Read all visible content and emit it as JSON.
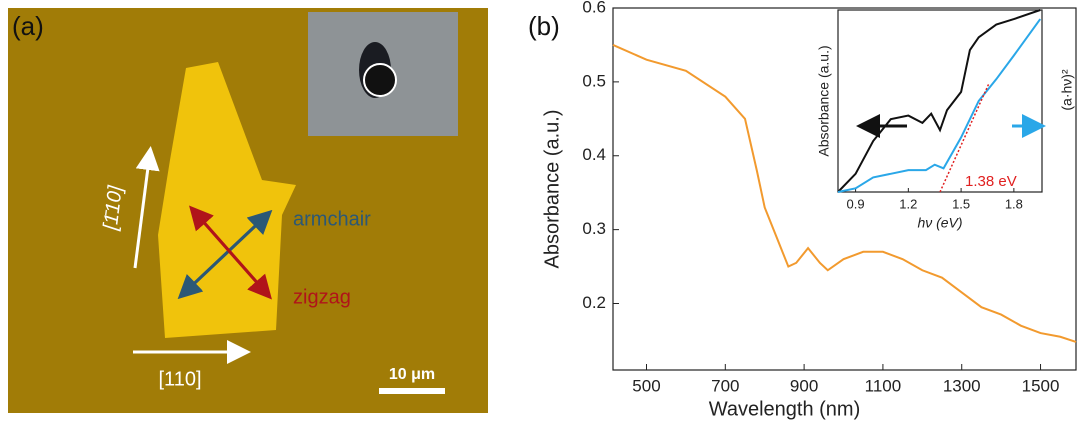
{
  "panel_a": {
    "label": "(a)",
    "direction_x": "[110]",
    "direction_y": "[1̄10]",
    "armchair": "armchair",
    "zigzag": "zigzag",
    "scale_bar": "10 μm"
  },
  "chart_data": [
    {
      "type": "line",
      "label": "(b)",
      "x_label": "Wavelength (nm)",
      "y_label": "Absorbance (a.u.)",
      "xlim": [
        415,
        1590
      ],
      "xticks": [
        500,
        700,
        900,
        1100,
        1300,
        1500
      ],
      "ylim": [
        0.11,
        0.6
      ],
      "yticks": [
        0.2,
        0.3,
        0.4,
        0.5,
        0.6
      ],
      "series": [
        {
          "color": "#f29a2e",
          "x": [
            415,
            500,
            600,
            700,
            750,
            780,
            800,
            830,
            860,
            880,
            910,
            940,
            960,
            1000,
            1050,
            1100,
            1150,
            1200,
            1250,
            1300,
            1350,
            1400,
            1450,
            1500,
            1550,
            1590
          ],
          "values": [
            0.55,
            0.53,
            0.515,
            0.48,
            0.45,
            0.38,
            0.33,
            0.29,
            0.25,
            0.255,
            0.275,
            0.255,
            0.245,
            0.26,
            0.27,
            0.27,
            0.26,
            0.245,
            0.235,
            0.215,
            0.195,
            0.185,
            0.17,
            0.16,
            0.155,
            0.148
          ]
        }
      ]
    },
    {
      "type": "line",
      "x_label": "hν (eV)",
      "y_label": "Absorbance (a.u.)",
      "y2_label": "(a·hν)²",
      "annotation": "1.38 eV",
      "xlim": [
        0.8,
        1.96
      ],
      "xticks": [
        0.9,
        1.2,
        1.5,
        1.8
      ],
      "ylim": [
        0,
        1
      ],
      "series": [
        {
          "color": "#111111",
          "x": [
            0.8,
            0.9,
            1.0,
            1.1,
            1.2,
            1.28,
            1.33,
            1.38,
            1.42,
            1.5,
            1.55,
            1.6,
            1.7,
            1.8,
            1.95
          ],
          "values": [
            0.0,
            0.1,
            0.28,
            0.4,
            0.42,
            0.38,
            0.43,
            0.34,
            0.45,
            0.55,
            0.78,
            0.85,
            0.92,
            0.95,
            1.0
          ]
        },
        {
          "color": "#2aa7e8",
          "x": [
            0.8,
            0.9,
            1.0,
            1.1,
            1.2,
            1.3,
            1.35,
            1.4,
            1.5,
            1.6,
            1.7,
            1.8,
            1.95
          ],
          "values": [
            0.0,
            0.02,
            0.08,
            0.1,
            0.12,
            0.12,
            0.15,
            0.13,
            0.3,
            0.5,
            0.62,
            0.75,
            0.95
          ]
        },
        {
          "color": "#e02020",
          "dash": true,
          "x": [
            1.38,
            1.66
          ],
          "values": [
            0.0,
            0.6
          ]
        }
      ]
    }
  ]
}
